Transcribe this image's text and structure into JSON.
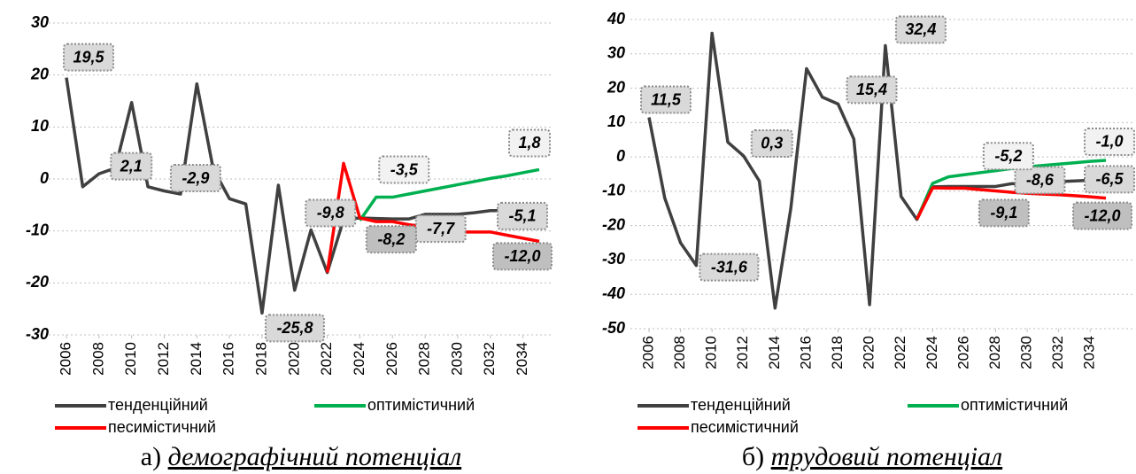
{
  "chart_data": [
    {
      "type": "line",
      "x": [
        2006,
        2007,
        2008,
        2009,
        2010,
        2011,
        2012,
        2013,
        2014,
        2015,
        2016,
        2017,
        2018,
        2019,
        2020,
        2021,
        2022,
        2023,
        2024,
        2025,
        2026,
        2027,
        2028,
        2029,
        2030,
        2031,
        2032,
        2033,
        2034,
        2035
      ],
      "xlim": [
        2006,
        2035
      ],
      "xticks": [
        2006,
        2008,
        2010,
        2012,
        2014,
        2016,
        2018,
        2020,
        2022,
        2024,
        2026,
        2028,
        2030,
        2032,
        2034
      ],
      "ylim": [
        -30,
        30
      ],
      "yticks": [
        -30,
        -20,
        -10,
        0,
        10,
        20,
        30
      ],
      "grid": true,
      "series": [
        {
          "name": "тенденційний",
          "color": "#404040",
          "values": [
            19.5,
            -1.5,
            1,
            2.1,
            14.7,
            -1.5,
            -2.3,
            -2.9,
            18.3,
            2,
            -3.8,
            -4.8,
            -25.8,
            -1.2,
            -21.4,
            -9.8,
            -18,
            -7.8,
            -7.5,
            -7.6,
            -7.7,
            -7.7,
            -6.8,
            -6.8,
            -6.8,
            -6.5,
            -6.1,
            -6.1,
            -5.6,
            -5.1
          ],
          "value_labels": [
            "19,5",
            null,
            null,
            "2,1",
            null,
            null,
            null,
            "-2,9",
            null,
            null,
            null,
            null,
            "-25,8",
            null,
            null,
            "-9,8",
            null,
            null,
            null,
            null,
            null,
            "-7,7",
            null,
            null,
            null,
            null,
            null,
            null,
            null,
            "-5,1"
          ]
        },
        {
          "name": "оптимістичний",
          "color": "#00b050",
          "values": [
            null,
            null,
            null,
            null,
            null,
            null,
            null,
            null,
            null,
            null,
            null,
            null,
            null,
            null,
            null,
            null,
            null,
            null,
            -8,
            -3.5,
            -3.5,
            -2.9,
            -2.3,
            -1.7,
            -1.1,
            -0.5,
            0.1,
            0.6,
            1.2,
            1.8
          ],
          "value_labels": [
            null,
            null,
            null,
            null,
            null,
            null,
            null,
            null,
            null,
            null,
            null,
            null,
            null,
            null,
            null,
            null,
            null,
            null,
            null,
            null,
            "-3,5",
            null,
            null,
            null,
            null,
            null,
            null,
            null,
            null,
            "1,8"
          ]
        },
        {
          "name": "песимістичний",
          "color": "#ff0000",
          "values": [
            null,
            null,
            null,
            null,
            null,
            null,
            null,
            null,
            null,
            null,
            null,
            null,
            null,
            null,
            null,
            null,
            -18,
            3,
            -7.5,
            -8.2,
            -8.2,
            -8.8,
            -9.2,
            -9.6,
            -10.2,
            -10.2,
            -10.2,
            -10.8,
            -11.4,
            -12.0
          ],
          "value_labels": [
            null,
            null,
            null,
            null,
            null,
            null,
            null,
            null,
            null,
            null,
            null,
            null,
            null,
            null,
            null,
            null,
            null,
            null,
            null,
            "-8,2",
            null,
            null,
            null,
            null,
            null,
            null,
            null,
            null,
            null,
            "-12,0"
          ]
        }
      ],
      "caption": {
        "prefix": "а)",
        "text": "демографічний потенціал"
      }
    },
    {
      "type": "line",
      "x": [
        2006,
        2007,
        2008,
        2009,
        2010,
        2011,
        2012,
        2013,
        2014,
        2015,
        2016,
        2017,
        2018,
        2019,
        2020,
        2021,
        2022,
        2023,
        2024,
        2025,
        2026,
        2027,
        2028,
        2029,
        2030,
        2031,
        2032,
        2033,
        2034,
        2035
      ],
      "xlim": [
        2006,
        2035
      ],
      "xticks": [
        2006,
        2008,
        2010,
        2012,
        2014,
        2016,
        2018,
        2020,
        2022,
        2024,
        2026,
        2028,
        2030,
        2032,
        2034
      ],
      "ylim": [
        -50,
        40
      ],
      "yticks": [
        -50,
        -40,
        -30,
        -20,
        -10,
        0,
        10,
        20,
        30,
        40
      ],
      "grid": true,
      "series": [
        {
          "name": "тенденційний",
          "color": "#404040",
          "values": [
            11.5,
            -12,
            -25,
            -31.6,
            36,
            4.3,
            0.3,
            -7,
            -44,
            -15,
            25.7,
            17.4,
            15.4,
            5.2,
            -43,
            32.4,
            -11.5,
            -18.2,
            -8.7,
            -8.6,
            -8.6,
            -8.6,
            -8.6,
            -7.8,
            -7.6,
            -7.3,
            -7.2,
            -7.0,
            -6.8,
            -6.5
          ],
          "value_labels": [
            "11,5",
            null,
            null,
            "-31,6",
            null,
            null,
            "0,3",
            null,
            null,
            null,
            null,
            null,
            "15,4",
            null,
            null,
            "32,4",
            null,
            null,
            null,
            null,
            null,
            null,
            "-8,6",
            null,
            null,
            null,
            null,
            null,
            null,
            "-6,5"
          ]
        },
        {
          "name": "оптимістичний",
          "color": "#00b050",
          "values": [
            null,
            null,
            null,
            null,
            null,
            null,
            null,
            null,
            null,
            null,
            null,
            null,
            null,
            null,
            null,
            null,
            null,
            -18.2,
            -7.7,
            -5.8,
            -5.2,
            -4.6,
            -4.0,
            -3.4,
            -2.9,
            -2.5,
            -2.1,
            -1.7,
            -1.3,
            -1.0
          ],
          "value_labels": [
            null,
            null,
            null,
            null,
            null,
            null,
            null,
            null,
            null,
            null,
            null,
            null,
            null,
            null,
            null,
            null,
            null,
            null,
            null,
            null,
            "-5,2",
            null,
            null,
            null,
            null,
            null,
            null,
            null,
            null,
            "-1,0"
          ]
        },
        {
          "name": "песимістичний",
          "color": "#ff0000",
          "values": [
            null,
            null,
            null,
            null,
            null,
            null,
            null,
            null,
            null,
            null,
            null,
            null,
            null,
            null,
            null,
            null,
            null,
            -18.2,
            -9,
            -9.1,
            -9.1,
            -9.5,
            -9.9,
            -10.3,
            -10.6,
            -10.8,
            -11.0,
            -11.3,
            -11.6,
            -12.0
          ],
          "value_labels": [
            null,
            null,
            null,
            null,
            null,
            null,
            null,
            null,
            null,
            null,
            null,
            null,
            null,
            null,
            null,
            null,
            null,
            null,
            null,
            null,
            "-9,1",
            null,
            null,
            null,
            null,
            null,
            null,
            null,
            null,
            "-12,0"
          ]
        }
      ],
      "caption": {
        "prefix": "б)",
        "text": "трудовий потенціал"
      }
    }
  ]
}
